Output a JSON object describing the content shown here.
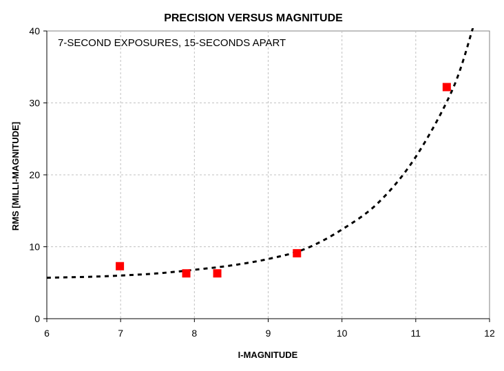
{
  "chart_data": {
    "type": "scatter",
    "title": "PRECISION VERSUS MAGNITUDE",
    "annotation": "7-SECOND EXPOSURES, 15-SECONDS APART",
    "xlabel": "I-MAGNITUDE",
    "ylabel": "RMS [MILLI-MAGNITUDE]",
    "xlim": [
      6,
      12
    ],
    "ylim": [
      0,
      40
    ],
    "x_ticks": [
      "6",
      "7",
      "8",
      "9",
      "10",
      "11",
      "12"
    ],
    "y_ticks": [
      "0",
      "10",
      "20",
      "30",
      "40"
    ],
    "grid": true,
    "series": [
      {
        "kind": "points",
        "marker": "square",
        "color": "#ff0000",
        "x": [
          6.99,
          7.89,
          8.31,
          9.39,
          11.42
        ],
        "y": [
          7.3,
          6.3,
          6.3,
          9.1,
          32.2
        ]
      },
      {
        "kind": "trend",
        "style": "dashed",
        "color": "#000000",
        "x": [
          6.0,
          6.5,
          7.0,
          7.5,
          8.0,
          8.5,
          9.0,
          9.5,
          10.0,
          10.5,
          11.0,
          11.5,
          11.78
        ],
        "y": [
          5.7,
          5.8,
          6.0,
          6.3,
          6.8,
          7.4,
          8.3,
          9.7,
          12.4,
          16.2,
          22.5,
          31.9,
          40.6
        ]
      }
    ]
  }
}
